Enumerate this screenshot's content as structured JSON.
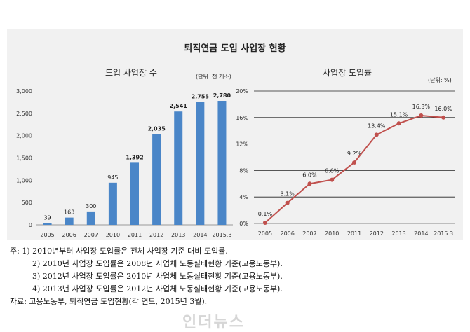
{
  "title": "퇴직연금 도입 사업장 현황",
  "chart_data": [
    {
      "type": "bar",
      "title": "도입 사업장 수",
      "unit": "(단위: 천 개소)",
      "categories": [
        "2005",
        "2006",
        "2007",
        "2010",
        "2011",
        "2012",
        "2013",
        "2014",
        "2015.3"
      ],
      "values": [
        39,
        163,
        300,
        945,
        1392,
        2035,
        2541,
        2755,
        2780
      ],
      "value_labels": [
        "39",
        "163",
        "300",
        "945",
        "1,392",
        "2,035",
        "2,541",
        "2,755",
        "2,780"
      ],
      "yticks": [
        "0",
        "500",
        "1,000",
        "1,500",
        "2,000",
        "2,500",
        "3,000"
      ],
      "ylim": [
        0,
        3000
      ],
      "color": "#4a86c8"
    },
    {
      "type": "line",
      "title": "사업장 도입률",
      "unit": "(단위: %)",
      "categories": [
        "2005",
        "2006",
        "2007",
        "2010",
        "2011",
        "2012",
        "2013",
        "2014",
        "2015.3"
      ],
      "values": [
        0.1,
        3.1,
        6.0,
        6.6,
        9.2,
        13.4,
        15.1,
        16.3,
        16.0
      ],
      "value_labels": [
        "0.1%",
        "3.1%",
        "6.0%",
        "6.6%",
        "9.2%",
        "13.4%",
        "15.1%",
        "16.3%",
        "16.0%"
      ],
      "yticks": [
        "0%",
        "4%",
        "8%",
        "12%",
        "16%",
        "20%"
      ],
      "ylim": [
        0,
        20
      ],
      "color": "#c0504d"
    }
  ],
  "notes": [
    "주: 1) 2010년부터 사업장 도입률은 전체 사업장 기준 대비 도입률.",
    "2) 2010년 사업장 도입률은 2008년 사업체 노동실태현황 기준(고용노동부).",
    "3) 2012년 사업장 도입률은 2010년 사업체 노동실태현황 기준(고용노동부).",
    "4) 2013년 사업장 도입률은 2012년 사업체 노동실태현황 기준(고용노동부).",
    "자료: 고용노동부, 퇴직연금 도입현황(각 연도, 2015년 3월)."
  ],
  "watermark": "인더뉴스"
}
